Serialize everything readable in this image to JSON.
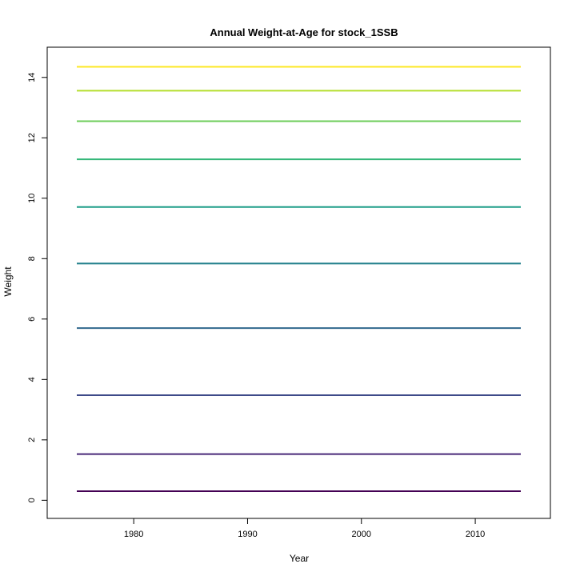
{
  "chart_data": {
    "type": "line",
    "title": "Annual Weight-at-Age for stock_1SSB",
    "xlabel": "Year",
    "ylabel": "Weight",
    "xlim": [
      1972.4,
      2016.6
    ],
    "ylim": [
      -0.6,
      15.0
    ],
    "xticks": [
      1980,
      1990,
      2000,
      2010
    ],
    "yticks": [
      0,
      2,
      4,
      6,
      8,
      10,
      12,
      14
    ],
    "x": [
      1975,
      2014
    ],
    "grid": false,
    "legend": "none",
    "series": [
      {
        "values": [
          0.3,
          0.3
        ],
        "color": "#440154"
      },
      {
        "values": [
          1.53,
          1.53
        ],
        "color": "#482878"
      },
      {
        "values": [
          3.48,
          3.48
        ],
        "color": "#3E4A89"
      },
      {
        "values": [
          5.7,
          5.7
        ],
        "color": "#31688E"
      },
      {
        "values": [
          7.84,
          7.84
        ],
        "color": "#26828E"
      },
      {
        "values": [
          9.71,
          9.71
        ],
        "color": "#1F9E89"
      },
      {
        "values": [
          11.29,
          11.29
        ],
        "color": "#35B779"
      },
      {
        "values": [
          12.55,
          12.55
        ],
        "color": "#6DCD59"
      },
      {
        "values": [
          13.56,
          13.56
        ],
        "color": "#B4DE2C"
      },
      {
        "values": [
          14.35,
          14.35
        ],
        "color": "#FDE725"
      }
    ]
  }
}
